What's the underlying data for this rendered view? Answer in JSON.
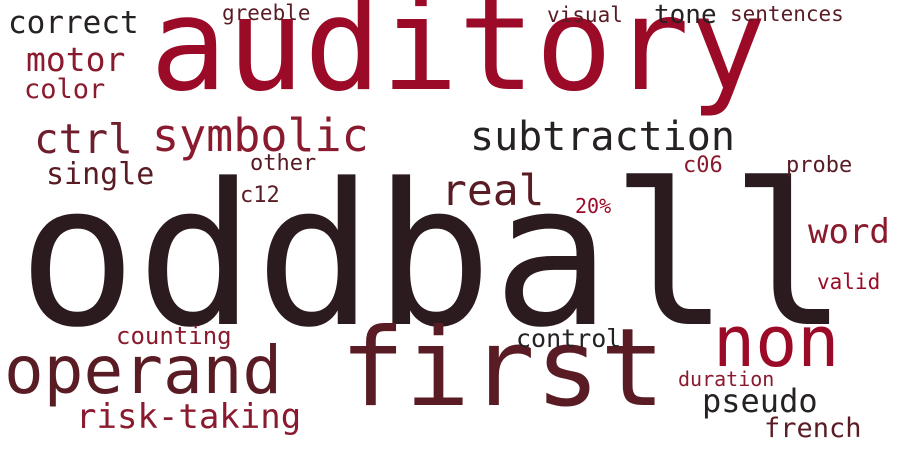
{
  "palette": {
    "crimson": "#9b0a26",
    "deep_red": "#8a1a2e",
    "wine": "#6e1e2c",
    "oxblood": "#5a1c24",
    "dark_maroon": "#2b1b1e",
    "near_black": "#262223"
  },
  "words": [
    {
      "text": "oddball",
      "color": "dark_maroon"
    },
    {
      "text": "auditory",
      "color": "crimson"
    },
    {
      "text": "first",
      "color": "oxblood"
    },
    {
      "text": "non",
      "color": "crimson"
    },
    {
      "text": "operand",
      "color": "oxblood"
    },
    {
      "text": "subtraction",
      "color": "near_black"
    },
    {
      "text": "symbolic",
      "color": "deep_red"
    },
    {
      "text": "ctrl",
      "color": "wine"
    },
    {
      "text": "real",
      "color": "oxblood"
    },
    {
      "text": "risk-taking",
      "color": "deep_red"
    },
    {
      "text": "correct",
      "color": "near_black"
    },
    {
      "text": "motor",
      "color": "deep_red"
    },
    {
      "text": "word",
      "color": "deep_red"
    },
    {
      "text": "pseudo",
      "color": "near_black"
    },
    {
      "text": "tone",
      "color": "near_black"
    },
    {
      "text": "single",
      "color": "oxblood"
    },
    {
      "text": "french",
      "color": "oxblood"
    },
    {
      "text": "color",
      "color": "deep_red"
    },
    {
      "text": "control",
      "color": "near_black"
    },
    {
      "text": "counting",
      "color": "deep_red"
    },
    {
      "text": "sentences",
      "color": "oxblood"
    },
    {
      "text": "visual",
      "color": "oxblood"
    },
    {
      "text": "greeble",
      "color": "oxblood"
    },
    {
      "text": "other",
      "color": "oxblood"
    },
    {
      "text": "probe",
      "color": "oxblood"
    },
    {
      "text": "c06",
      "color": "deep_red"
    },
    {
      "text": "c12",
      "color": "oxblood"
    },
    {
      "text": "duration",
      "color": "deep_red"
    },
    {
      "text": "valid",
      "color": "crimson"
    },
    {
      "text": "20%",
      "color": "crimson"
    }
  ]
}
